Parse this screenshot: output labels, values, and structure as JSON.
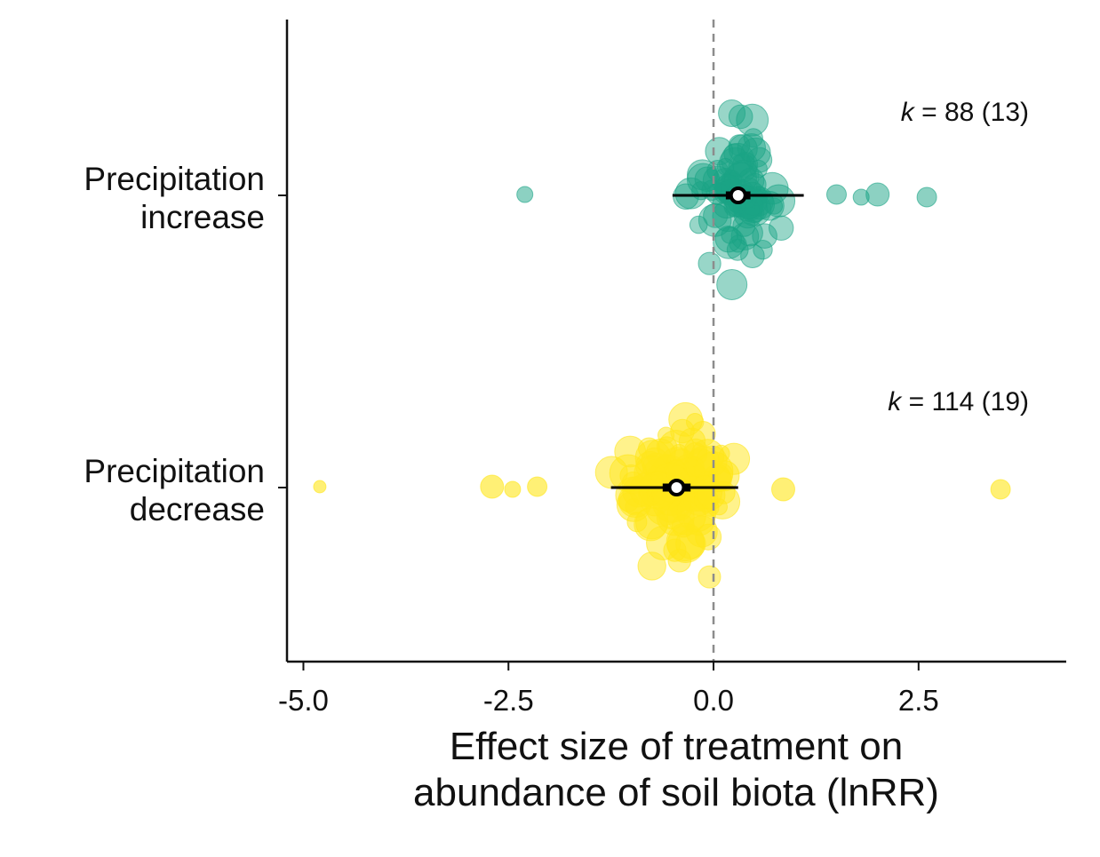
{
  "chart_data": {
    "type": "scatter",
    "subtype": "orchard-plot",
    "title": "",
    "xlabel_lines": [
      "Effect size of treatment on",
      "abundance of soil biota (lnRR)"
    ],
    "ylabel": "",
    "xlim": [
      -5.2,
      4.3
    ],
    "xticks": [
      -5.0,
      -2.5,
      0.0,
      2.5
    ],
    "xtick_labels": [
      "-5.0",
      "-2.5",
      "0.0",
      "2.5"
    ],
    "reference_line_x": 0.0,
    "grid": false,
    "legend": "none",
    "colors": {
      "increase": "#1aa486",
      "decrease": "#ffe619",
      "estimate": "#000000",
      "reference": "#8c8c8c",
      "axis": "#111111"
    },
    "categories": [
      {
        "key": "increase",
        "label_lines": [
          "Precipitation",
          "increase"
        ],
        "k_prefix": "k",
        "k_suffix": " = 88 (13)",
        "k_value": 88,
        "n_studies": 13,
        "estimate": 0.3,
        "ci": [
          -0.5,
          1.1
        ],
        "thick_ci": [
          0.15,
          0.45
        ],
        "outliers": [
          -2.3,
          2.6,
          2.0,
          1.8,
          1.5
        ]
      },
      {
        "key": "decrease",
        "label_lines": [
          "Precipitation",
          "decrease"
        ],
        "k_prefix": "k",
        "k_suffix": " = 114 (19)",
        "k_value": 114,
        "n_studies": 19,
        "estimate": -0.45,
        "ci": [
          -1.25,
          0.3
        ],
        "thick_ci": [
          -0.62,
          -0.28
        ],
        "outliers": [
          -4.8,
          3.5,
          -2.7,
          -2.45,
          -2.15,
          0.85
        ]
      }
    ]
  }
}
